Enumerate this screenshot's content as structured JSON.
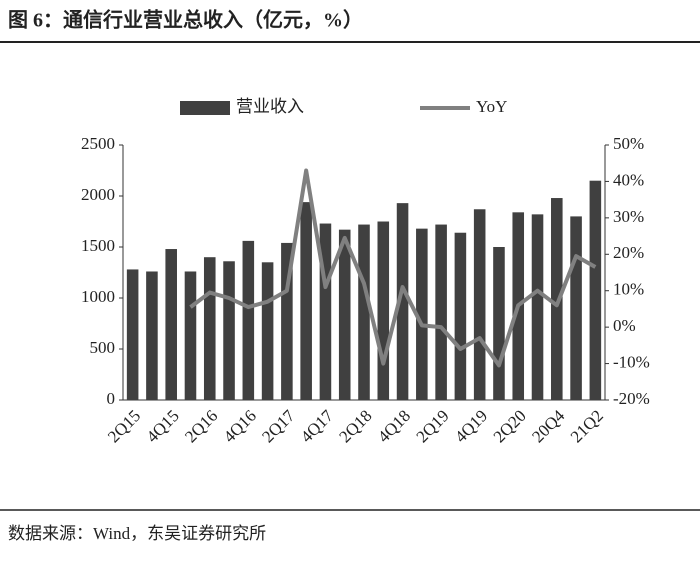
{
  "header": {
    "title": "图 6：通信行业营业总收入（亿元，%）"
  },
  "chart_data": {
    "type": "bar",
    "categories": [
      "2Q15",
      null,
      "4Q15",
      null,
      "2Q16",
      null,
      "4Q16",
      null,
      "2Q17",
      null,
      "4Q17",
      null,
      "2Q18",
      null,
      "4Q18",
      null,
      "2Q19",
      null,
      "4Q19",
      null,
      "2Q20",
      null,
      "20Q4",
      null,
      "21Q2"
    ],
    "series": [
      {
        "name": "营业收入",
        "type": "bar",
        "color": "#404040",
        "values": [
          1280,
          1260,
          1480,
          1260,
          1400,
          1360,
          1560,
          1350,
          1540,
          1940,
          1730,
          1670,
          1720,
          1750,
          1930,
          1680,
          1720,
          1640,
          1870,
          1500,
          1840,
          1820,
          1980,
          1800,
          2150
        ]
      },
      {
        "name": "YoY",
        "type": "line",
        "axis": "y2",
        "color": "#808080",
        "values": [
          null,
          null,
          null,
          5.5,
          9.5,
          8,
          5.5,
          7,
          10,
          43,
          11,
          24.5,
          12,
          -10,
          11,
          0.5,
          0,
          -6,
          -3,
          -10.5,
          6,
          10,
          6,
          19.5,
          16.5
        ]
      }
    ],
    "ylim": [
      0,
      2500
    ],
    "yticks": [
      0,
      500,
      1000,
      1500,
      2000,
      2500
    ],
    "y2lim": [
      -20,
      50
    ],
    "y2ticks": [
      {
        "value": -20,
        "label": "-20%"
      },
      {
        "value": -10,
        "label": "-10%"
      },
      {
        "value": 0,
        "label": "0%"
      },
      {
        "value": 10,
        "label": "10%"
      },
      {
        "value": 20,
        "label": "20%"
      },
      {
        "value": 30,
        "label": "30%"
      },
      {
        "value": 40,
        "label": "40%"
      },
      {
        "value": 50,
        "label": "50%"
      }
    ],
    "grid": false,
    "legend": "top"
  },
  "footer": {
    "source": "数据来源：Wind，东吴证券研究所"
  }
}
